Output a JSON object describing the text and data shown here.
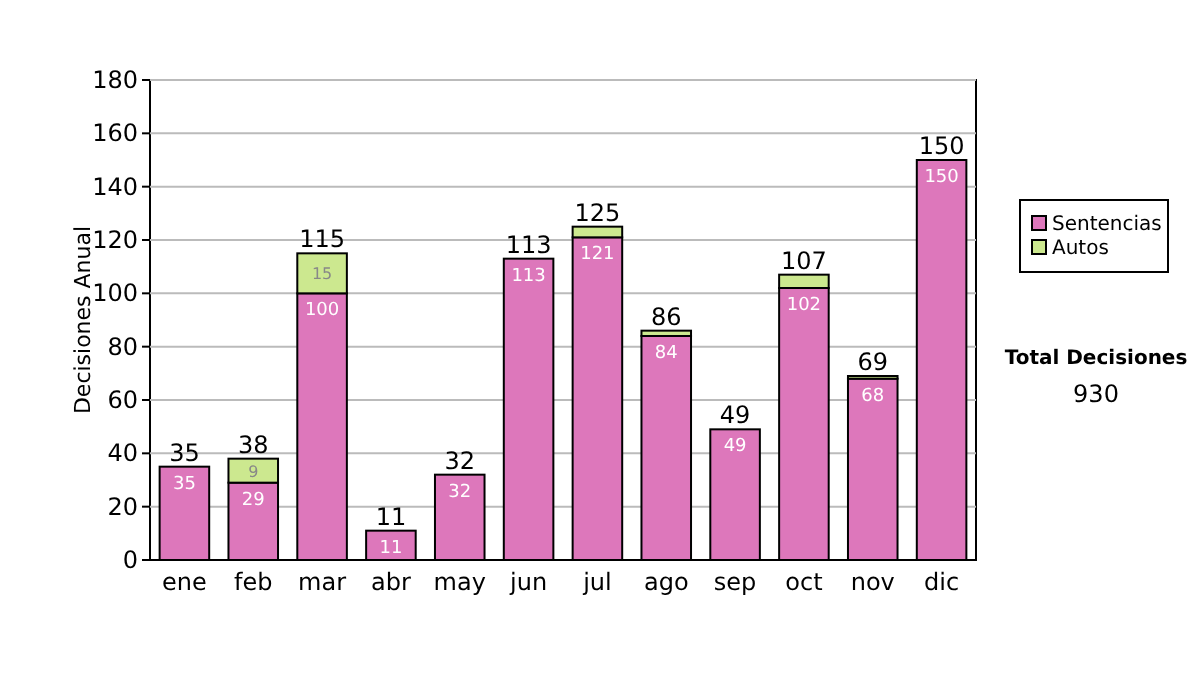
{
  "chart_data": {
    "type": "bar",
    "ylabel": "Decisiones Anual",
    "categories": [
      "ene",
      "feb",
      "mar",
      "abr",
      "may",
      "jun",
      "jul",
      "ago",
      "sep",
      "oct",
      "nov",
      "dic"
    ],
    "series": [
      {
        "name": "Sentencias",
        "color": "#dd77bb",
        "values": [
          35,
          29,
          100,
          11,
          32,
          113,
          121,
          84,
          49,
          102,
          68,
          150
        ],
        "value_labels": [
          "35",
          "29",
          "100",
          "11",
          "32",
          "113",
          "121",
          "84",
          "49",
          "102",
          "68",
          "150"
        ]
      },
      {
        "name": "Autos",
        "color": "#cce88f",
        "values": [
          0,
          9,
          15,
          0,
          0,
          0,
          4,
          2,
          0,
          5,
          1,
          0
        ],
        "value_labels": [
          null,
          "9",
          "15",
          null,
          null,
          null,
          null,
          null,
          null,
          null,
          null,
          null
        ]
      }
    ],
    "stacked": true,
    "totals": [
      "35",
      "38",
      "115",
      "11",
      "32",
      "113",
      "125",
      "86",
      "49",
      "107",
      "69",
      "150"
    ],
    "ylim": [
      0,
      180
    ],
    "yticks": [
      0,
      20,
      40,
      60,
      80,
      100,
      120,
      140,
      160,
      180
    ],
    "grid": "y",
    "legend": "right",
    "annotations": [
      "Total Decisiones",
      "930"
    ]
  }
}
